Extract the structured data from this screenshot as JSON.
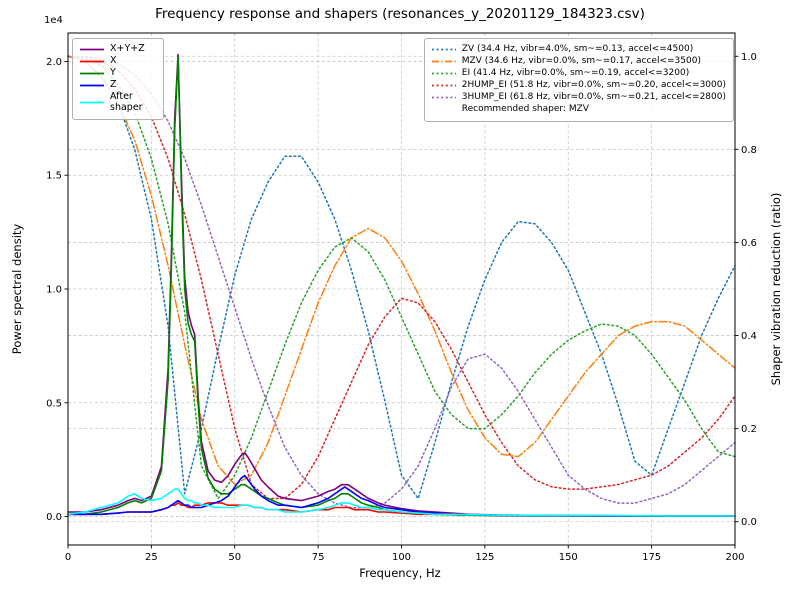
{
  "title": "Frequency response and shapers (resonances_y_20201129_184323.csv)",
  "axes": {
    "x": {
      "label": "Frequency, Hz",
      "ticks": [
        0,
        25,
        50,
        75,
        100,
        125,
        150,
        175,
        200
      ],
      "tick_labels": [
        "0",
        "25",
        "50",
        "75",
        "100",
        "125",
        "150",
        "175",
        "200"
      ]
    },
    "y_left": {
      "label": "Power spectral density",
      "offset_text": "1e4",
      "ticks": [
        0,
        0.5,
        1.0,
        1.5,
        2.0
      ],
      "tick_labels": [
        "0.0",
        "0.5",
        "1.0",
        "1.5",
        "2.0"
      ]
    },
    "y_right": {
      "label": "Shaper vibration reduction (ratio)",
      "ticks": [
        0,
        0.2,
        0.4,
        0.6,
        0.8,
        1.0
      ],
      "tick_labels": [
        "0.0",
        "0.2",
        "0.4",
        "0.6",
        "0.8",
        "1.0"
      ]
    }
  },
  "legend_psd": {
    "items": [
      {
        "label": "X+Y+Z",
        "color": "#800080",
        "style": "solid"
      },
      {
        "label": "X",
        "color": "#ff0000",
        "style": "solid"
      },
      {
        "label": "Y",
        "color": "#008000",
        "style": "solid"
      },
      {
        "label": "Z",
        "color": "#0000ff",
        "style": "solid"
      },
      {
        "label": "After shaper",
        "color": "#00ffff",
        "style": "solid"
      }
    ]
  },
  "legend_shapers": {
    "items": [
      {
        "label": "ZV (34.4 Hz, vibr=4.0%, sm~=0.13, accel<=4500)",
        "color": "#1f77b4",
        "style": "dotted"
      },
      {
        "label": "MZV (34.6 Hz, vibr=0.0%, sm~=0.17, accel<=3500)",
        "color": "#ff7f0e",
        "style": "dashdot"
      },
      {
        "label": "EI (41.4 Hz, vibr=0.0%, sm~=0.19, accel<=3200)",
        "color": "#2ca02c",
        "style": "dotted"
      },
      {
        "label": "2HUMP_EI (51.8 Hz, vibr=0.0%, sm~=0.20, accel<=3000)",
        "color": "#d62728",
        "style": "dotted"
      },
      {
        "label": "3HUMP_EI (61.8 Hz, vibr=0.0%, sm~=0.21, accel<=2800)",
        "color": "#9467bd",
        "style": "dotted"
      }
    ],
    "note": "Recommended shaper: MZV"
  },
  "chart_data": {
    "type": "line",
    "title": "Frequency response and shapers (resonances_y_20201129_184323.csv)",
    "xlabel": "Frequency, Hz",
    "ylabel_left": "Power spectral density",
    "ylabel_right": "Shaper vibration reduction (ratio)",
    "psd_unit_multiplier": "1e4",
    "recommended_shaper": "MZV",
    "x_range": [
      0,
      200
    ],
    "y_left_range": [
      -0.125,
      2.125
    ],
    "y_right_range": [
      -0.05,
      1.05
    ],
    "grid": true,
    "psd_x": [
      0,
      5,
      10,
      15,
      18,
      20,
      22,
      25,
      28,
      30,
      31,
      32,
      33,
      34,
      35,
      36,
      37,
      38,
      39,
      40,
      42,
      44,
      46,
      48,
      50,
      52,
      53,
      54,
      56,
      58,
      60,
      63,
      65,
      70,
      75,
      78,
      80,
      82,
      83,
      84,
      86,
      88,
      90,
      93,
      95,
      100,
      105,
      110,
      115,
      120,
      130,
      140,
      160,
      180,
      200
    ],
    "psd_series": [
      {
        "name": "X+Y+Z",
        "axis": "left",
        "color": "#800080",
        "style": "solid",
        "values": [
          0.02,
          0.02,
          0.03,
          0.05,
          0.07,
          0.08,
          0.07,
          0.09,
          0.22,
          0.65,
          1.15,
          1.75,
          2.03,
          1.5,
          1.05,
          0.9,
          0.84,
          0.8,
          0.53,
          0.33,
          0.2,
          0.16,
          0.15,
          0.18,
          0.23,
          0.27,
          0.28,
          0.26,
          0.21,
          0.16,
          0.13,
          0.09,
          0.08,
          0.07,
          0.09,
          0.11,
          0.12,
          0.14,
          0.14,
          0.14,
          0.12,
          0.1,
          0.08,
          0.06,
          0.05,
          0.035,
          0.025,
          0.02,
          0.015,
          0.01,
          0.007,
          0.005,
          0.004,
          0.003,
          0.003
        ]
      },
      {
        "name": "X",
        "axis": "left",
        "color": "#ff0000",
        "style": "solid",
        "values": [
          0.01,
          0.01,
          0.01,
          0.015,
          0.02,
          0.02,
          0.02,
          0.02,
          0.03,
          0.04,
          0.05,
          0.05,
          0.06,
          0.05,
          0.05,
          0.04,
          0.04,
          0.05,
          0.05,
          0.05,
          0.06,
          0.06,
          0.06,
          0.05,
          0.05,
          0.05,
          0.05,
          0.05,
          0.04,
          0.04,
          0.03,
          0.03,
          0.03,
          0.02,
          0.03,
          0.03,
          0.04,
          0.04,
          0.04,
          0.04,
          0.03,
          0.03,
          0.03,
          0.02,
          0.02,
          0.015,
          0.01,
          0.01,
          0.008,
          0.006,
          0.005,
          0.004,
          0.003,
          0.002,
          0.002
        ]
      },
      {
        "name": "Y",
        "axis": "left",
        "color": "#008000",
        "style": "solid",
        "values": [
          0.01,
          0.01,
          0.02,
          0.04,
          0.06,
          0.07,
          0.06,
          0.08,
          0.2,
          0.6,
          1.1,
          1.7,
          2.02,
          1.45,
          1.0,
          0.85,
          0.8,
          0.77,
          0.5,
          0.3,
          0.17,
          0.12,
          0.1,
          0.1,
          0.12,
          0.14,
          0.14,
          0.13,
          0.11,
          0.09,
          0.08,
          0.06,
          0.05,
          0.04,
          0.05,
          0.07,
          0.08,
          0.1,
          0.1,
          0.1,
          0.08,
          0.06,
          0.05,
          0.04,
          0.03,
          0.02,
          0.015,
          0.01,
          0.008,
          0.006,
          0.004,
          0.003,
          0.002,
          0.002,
          0.002
        ]
      },
      {
        "name": "Z",
        "axis": "left",
        "color": "#0000ff",
        "style": "solid",
        "values": [
          0.01,
          0.01,
          0.01,
          0.015,
          0.02,
          0.02,
          0.02,
          0.02,
          0.03,
          0.04,
          0.05,
          0.06,
          0.07,
          0.06,
          0.05,
          0.05,
          0.04,
          0.04,
          0.04,
          0.04,
          0.05,
          0.06,
          0.07,
          0.09,
          0.13,
          0.17,
          0.18,
          0.16,
          0.12,
          0.09,
          0.07,
          0.05,
          0.05,
          0.04,
          0.06,
          0.08,
          0.1,
          0.12,
          0.13,
          0.12,
          0.1,
          0.08,
          0.07,
          0.05,
          0.04,
          0.03,
          0.02,
          0.015,
          0.01,
          0.008,
          0.005,
          0.004,
          0.003,
          0.002,
          0.002
        ]
      },
      {
        "name": "After shaper",
        "axis": "left",
        "color": "#00ffff",
        "style": "solid",
        "values": [
          0.01,
          0.02,
          0.04,
          0.06,
          0.09,
          0.1,
          0.08,
          0.07,
          0.08,
          0.1,
          0.11,
          0.12,
          0.12,
          0.1,
          0.08,
          0.07,
          0.07,
          0.06,
          0.06,
          0.05,
          0.05,
          0.04,
          0.04,
          0.04,
          0.04,
          0.05,
          0.05,
          0.05,
          0.04,
          0.04,
          0.03,
          0.03,
          0.02,
          0.02,
          0.03,
          0.04,
          0.05,
          0.06,
          0.06,
          0.06,
          0.05,
          0.04,
          0.04,
          0.03,
          0.03,
          0.02,
          0.015,
          0.01,
          0.01,
          0.008,
          0.006,
          0.005,
          0.004,
          0.003,
          0.003
        ]
      }
    ],
    "shaper_x": [
      0,
      5,
      10,
      15,
      20,
      25,
      30,
      35,
      40,
      45,
      50,
      55,
      60,
      65,
      70,
      75,
      80,
      85,
      90,
      95,
      100,
      105,
      110,
      115,
      120,
      125,
      130,
      135,
      140,
      145,
      150,
      155,
      160,
      165,
      170,
      175,
      180,
      185,
      190,
      195,
      200
    ],
    "shaper_series": [
      {
        "name": "ZV",
        "axis": "right",
        "color": "#1f77b4",
        "style": "dotted",
        "values": [
          1.0,
          0.99,
          0.955,
          0.9,
          0.8,
          0.65,
          0.42,
          0.06,
          0.2,
          0.37,
          0.53,
          0.65,
          0.73,
          0.785,
          0.785,
          0.73,
          0.65,
          0.54,
          0.41,
          0.26,
          0.1,
          0.05,
          0.17,
          0.3,
          0.42,
          0.52,
          0.6,
          0.645,
          0.64,
          0.6,
          0.54,
          0.45,
          0.36,
          0.25,
          0.13,
          0.1,
          0.2,
          0.3,
          0.4,
          0.48,
          0.55
        ]
      },
      {
        "name": "MZV",
        "axis": "right",
        "color": "#ff7f0e",
        "style": "dashdot",
        "values": [
          1.0,
          0.99,
          0.96,
          0.9,
          0.82,
          0.7,
          0.55,
          0.38,
          0.22,
          0.12,
          0.08,
          0.1,
          0.17,
          0.27,
          0.37,
          0.47,
          0.55,
          0.61,
          0.63,
          0.61,
          0.56,
          0.49,
          0.41,
          0.32,
          0.24,
          0.18,
          0.145,
          0.14,
          0.17,
          0.22,
          0.27,
          0.32,
          0.36,
          0.4,
          0.42,
          0.43,
          0.43,
          0.42,
          0.39,
          0.36,
          0.33
        ]
      },
      {
        "name": "EI",
        "axis": "right",
        "color": "#2ca02c",
        "style": "dotted",
        "values": [
          1.0,
          0.995,
          0.98,
          0.94,
          0.88,
          0.78,
          0.64,
          0.45,
          0.12,
          0.05,
          0.1,
          0.18,
          0.28,
          0.38,
          0.47,
          0.54,
          0.59,
          0.61,
          0.58,
          0.52,
          0.44,
          0.36,
          0.28,
          0.23,
          0.2,
          0.2,
          0.23,
          0.27,
          0.32,
          0.36,
          0.39,
          0.41,
          0.425,
          0.42,
          0.4,
          0.36,
          0.31,
          0.26,
          0.2,
          0.15,
          0.14
        ]
      },
      {
        "name": "2HUMP_EI",
        "axis": "right",
        "color": "#d62728",
        "style": "dotted",
        "values": [
          1.0,
          0.998,
          0.99,
          0.97,
          0.93,
          0.87,
          0.78,
          0.66,
          0.52,
          0.36,
          0.2,
          0.08,
          0.05,
          0.05,
          0.08,
          0.14,
          0.22,
          0.3,
          0.38,
          0.44,
          0.48,
          0.47,
          0.43,
          0.37,
          0.3,
          0.23,
          0.17,
          0.12,
          0.09,
          0.075,
          0.07,
          0.07,
          0.075,
          0.08,
          0.09,
          0.1,
          0.12,
          0.15,
          0.18,
          0.22,
          0.27
        ]
      },
      {
        "name": "3HUMP_EI",
        "axis": "right",
        "color": "#9467bd",
        "style": "dotted",
        "values": [
          1.0,
          0.999,
          0.995,
          0.985,
          0.96,
          0.92,
          0.86,
          0.78,
          0.68,
          0.57,
          0.46,
          0.35,
          0.25,
          0.16,
          0.1,
          0.06,
          0.04,
          0.03,
          0.03,
          0.04,
          0.07,
          0.12,
          0.2,
          0.29,
          0.35,
          0.36,
          0.33,
          0.28,
          0.22,
          0.16,
          0.1,
          0.07,
          0.05,
          0.04,
          0.04,
          0.05,
          0.06,
          0.08,
          0.11,
          0.14,
          0.17
        ]
      }
    ]
  }
}
